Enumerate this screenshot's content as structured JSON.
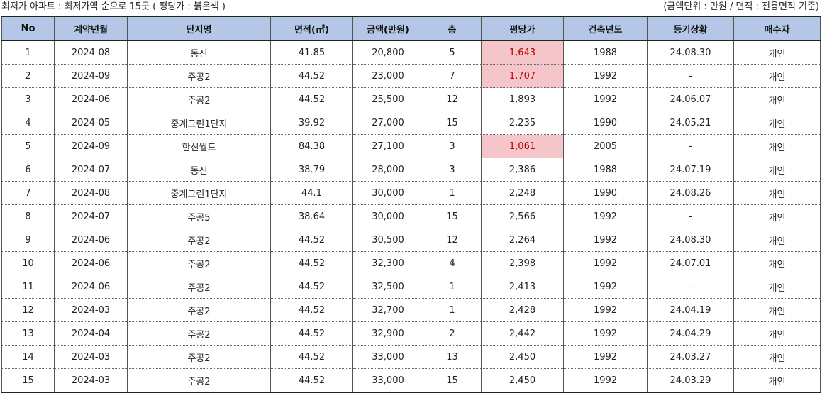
{
  "caption": {
    "left": "최저가 아파트 : 최저가액 순으로 15곳 ( 평당가 : 붉은색 )",
    "right": "(금액단위 : 만원 / 면적 : 전용면적 기준)"
  },
  "highlight_color": "#f4c6c9",
  "highlight_text_color": "#c00000",
  "header_color": "#b4c7e7",
  "columns": [
    "No",
    "계약년월",
    "단지명",
    "면적(㎡)",
    "금액(만원)",
    "층",
    "평당가",
    "건축년도",
    "등기상황",
    "매수자"
  ],
  "rows": [
    {
      "no": "1",
      "month": "2024-08",
      "complex": "동진",
      "area": "41.85",
      "price": "20,800",
      "floor": "5",
      "ppp": "1,643",
      "built": "1988",
      "registry": "24.08.30",
      "buyer": "개인",
      "highlight": true
    },
    {
      "no": "2",
      "month": "2024-09",
      "complex": "주공2",
      "area": "44.52",
      "price": "23,000",
      "floor": "7",
      "ppp": "1,707",
      "built": "1992",
      "registry": "-",
      "buyer": "개인",
      "highlight": true
    },
    {
      "no": "3",
      "month": "2024-06",
      "complex": "주공2",
      "area": "44.52",
      "price": "25,500",
      "floor": "12",
      "ppp": "1,893",
      "built": "1992",
      "registry": "24.06.07",
      "buyer": "개인",
      "highlight": false
    },
    {
      "no": "4",
      "month": "2024-05",
      "complex": "중계그린1단지",
      "area": "39.92",
      "price": "27,000",
      "floor": "15",
      "ppp": "2,235",
      "built": "1990",
      "registry": "24.05.21",
      "buyer": "개인",
      "highlight": false
    },
    {
      "no": "5",
      "month": "2024-09",
      "complex": "한신월드",
      "area": "84.38",
      "price": "27,100",
      "floor": "3",
      "ppp": "1,061",
      "built": "2005",
      "registry": "-",
      "buyer": "개인",
      "highlight": true
    },
    {
      "no": "6",
      "month": "2024-07",
      "complex": "동진",
      "area": "38.79",
      "price": "28,000",
      "floor": "3",
      "ppp": "2,386",
      "built": "1988",
      "registry": "24.07.19",
      "buyer": "개인",
      "highlight": false
    },
    {
      "no": "7",
      "month": "2024-08",
      "complex": "중계그린1단지",
      "area": "44.1",
      "price": "30,000",
      "floor": "1",
      "ppp": "2,248",
      "built": "1990",
      "registry": "24.08.26",
      "buyer": "개인",
      "highlight": false
    },
    {
      "no": "8",
      "month": "2024-07",
      "complex": "주공5",
      "area": "38.64",
      "price": "30,000",
      "floor": "15",
      "ppp": "2,566",
      "built": "1992",
      "registry": "-",
      "buyer": "개인",
      "highlight": false
    },
    {
      "no": "9",
      "month": "2024-06",
      "complex": "주공2",
      "area": "44.52",
      "price": "30,500",
      "floor": "12",
      "ppp": "2,264",
      "built": "1992",
      "registry": "24.08.30",
      "buyer": "개인",
      "highlight": false
    },
    {
      "no": "10",
      "month": "2024-06",
      "complex": "주공2",
      "area": "44.52",
      "price": "32,300",
      "floor": "4",
      "ppp": "2,398",
      "built": "1992",
      "registry": "24.07.01",
      "buyer": "개인",
      "highlight": false
    },
    {
      "no": "11",
      "month": "2024-06",
      "complex": "주공2",
      "area": "44.52",
      "price": "32,500",
      "floor": "1",
      "ppp": "2,413",
      "built": "1992",
      "registry": "-",
      "buyer": "개인",
      "highlight": false
    },
    {
      "no": "12",
      "month": "2024-03",
      "complex": "주공2",
      "area": "44.52",
      "price": "32,700",
      "floor": "1",
      "ppp": "2,428",
      "built": "1992",
      "registry": "24.04.19",
      "buyer": "개인",
      "highlight": false
    },
    {
      "no": "13",
      "month": "2024-04",
      "complex": "주공2",
      "area": "44.52",
      "price": "32,900",
      "floor": "2",
      "ppp": "2,442",
      "built": "1992",
      "registry": "24.04.29",
      "buyer": "개인",
      "highlight": false
    },
    {
      "no": "14",
      "month": "2024-03",
      "complex": "주공2",
      "area": "44.52",
      "price": "33,000",
      "floor": "13",
      "ppp": "2,450",
      "built": "1992",
      "registry": "24.03.27",
      "buyer": "개인",
      "highlight": false
    },
    {
      "no": "15",
      "month": "2024-03",
      "complex": "주공2",
      "area": "44.52",
      "price": "33,000",
      "floor": "15",
      "ppp": "2,450",
      "built": "1992",
      "registry": "24.03.29",
      "buyer": "개인",
      "highlight": false
    }
  ]
}
